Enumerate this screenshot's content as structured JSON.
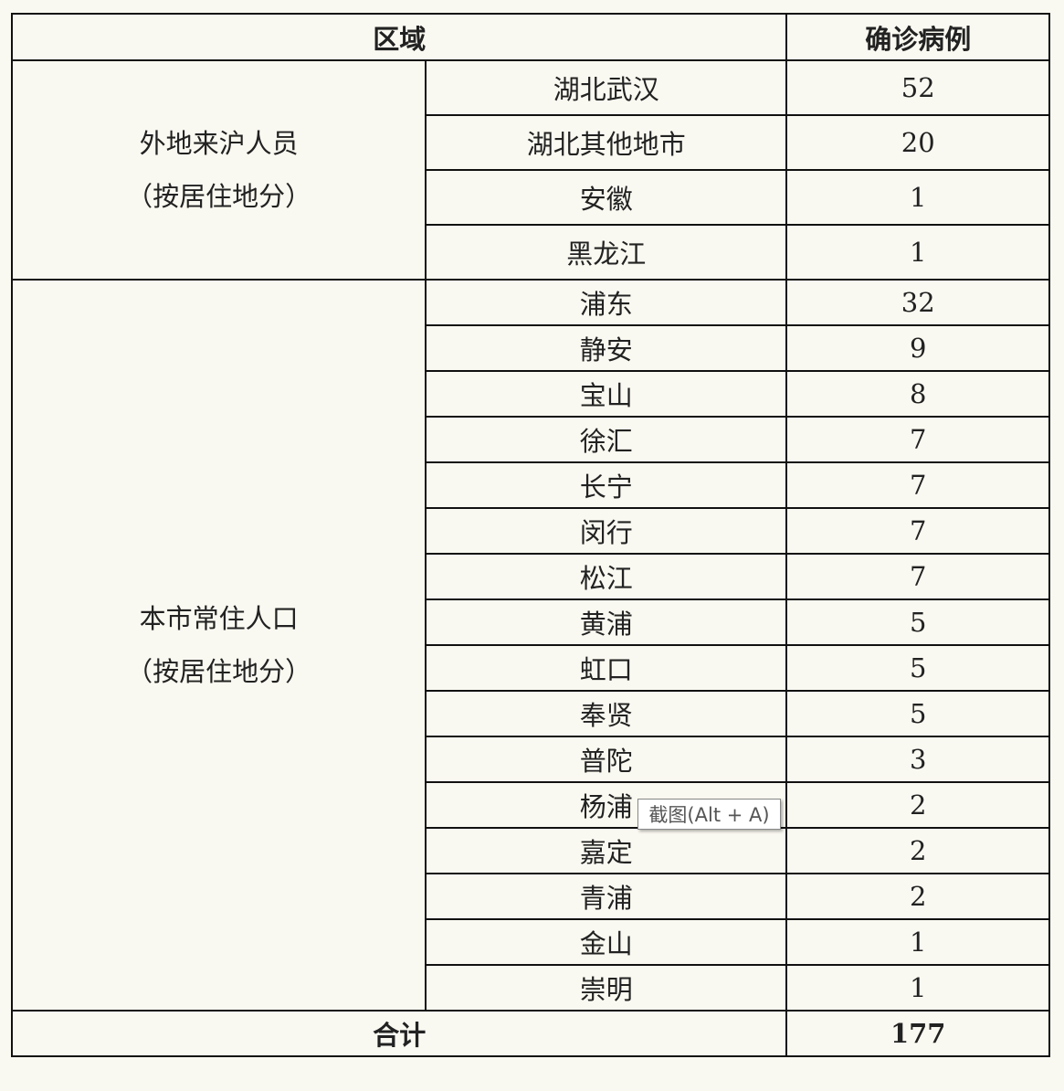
{
  "header": {
    "region": "区域",
    "cases": "确诊病例"
  },
  "groups": [
    {
      "label_line1": "外地来沪人员",
      "label_line2": "（按居住地分）",
      "rows": [
        {
          "area": "湖北武汉",
          "cases": "52"
        },
        {
          "area": "湖北其他地市",
          "cases": "20"
        },
        {
          "area": "安徽",
          "cases": "1"
        },
        {
          "area": "黑龙江",
          "cases": "1"
        }
      ]
    },
    {
      "label_line1": "本市常住人口",
      "label_line2": "（按居住地分）",
      "rows": [
        {
          "area": "浦东",
          "cases": "32"
        },
        {
          "area": "静安",
          "cases": "9"
        },
        {
          "area": "宝山",
          "cases": "8"
        },
        {
          "area": "徐汇",
          "cases": "7"
        },
        {
          "area": "长宁",
          "cases": "7"
        },
        {
          "area": "闵行",
          "cases": "7"
        },
        {
          "area": "松江",
          "cases": "7"
        },
        {
          "area": "黄浦",
          "cases": "5"
        },
        {
          "area": "虹口",
          "cases": "5"
        },
        {
          "area": "奉贤",
          "cases": "5"
        },
        {
          "area": "普陀",
          "cases": "3"
        },
        {
          "area": "杨浦",
          "cases": "2"
        },
        {
          "area": "嘉定",
          "cases": "2"
        },
        {
          "area": "青浦",
          "cases": "2"
        },
        {
          "area": "金山",
          "cases": "1"
        },
        {
          "area": "崇明",
          "cases": "1"
        }
      ]
    }
  ],
  "total": {
    "label": "合计",
    "cases": "177"
  },
  "tooltip": {
    "text": "截图(Alt + A)"
  }
}
